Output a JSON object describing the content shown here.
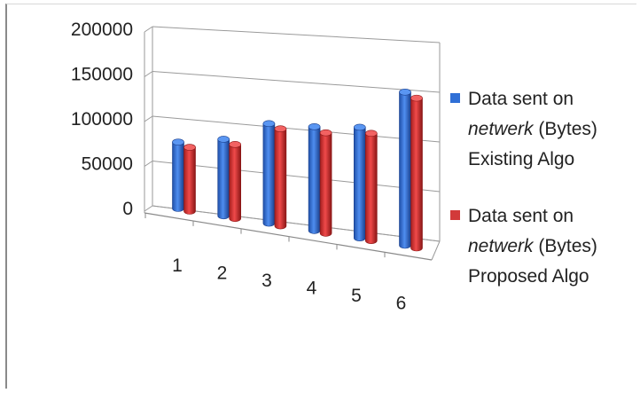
{
  "chart_data": {
    "type": "bar",
    "categories": [
      "1",
      "2",
      "3",
      "4",
      "5",
      "6"
    ],
    "series": [
      {
        "name": "Data sent on netwerk (Bytes) Existing Algo",
        "legend_lines": [
          "Data sent on",
          "netwerk (Bytes)",
          "Existing Algo"
        ],
        "color": "#2f6fd6",
        "values": [
          78000,
          90000,
          117000,
          122000,
          130000,
          180000
        ]
      },
      {
        "name": "Data sent on netwerk (Bytes) Proposed Algo",
        "legend_lines": [
          "Data sent on",
          "netwerk (Bytes)",
          "Proposed Algo"
        ],
        "color": "#d23a3a",
        "values": [
          75000,
          87000,
          114000,
          118000,
          126000,
          176000
        ]
      }
    ],
    "yticks": [
      "0",
      "50000",
      "100000",
      "150000",
      "200000"
    ],
    "ylim": [
      0,
      200000
    ],
    "grid": true,
    "legend_position": "right",
    "style": "3d-cylinder"
  }
}
